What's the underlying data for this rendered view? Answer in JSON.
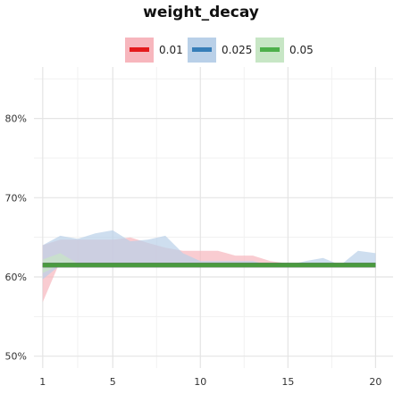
{
  "chart_data": {
    "type": "area",
    "title": "weight_decay",
    "xlabel": "",
    "ylabel": "",
    "x_ticks": [
      1,
      5,
      10,
      15,
      20
    ],
    "x_tick_labels": [
      "1",
      "5",
      "10",
      "15",
      "20"
    ],
    "y_ticks": [
      0.5,
      0.6,
      0.7,
      0.8
    ],
    "y_tick_labels": [
      "50%",
      "60%",
      "70%",
      "80%"
    ],
    "xlim": [
      0.5,
      21
    ],
    "ylim": [
      0.485,
      0.865
    ],
    "grid": true,
    "legend_position": "top-center",
    "x": [
      1,
      2,
      3,
      4,
      5,
      6,
      7,
      8,
      9,
      10,
      11,
      12,
      13,
      14,
      15,
      16,
      17,
      18,
      19,
      20
    ],
    "series": [
      {
        "name": "0.01",
        "color": "#e41a1c",
        "band_color": "#f7b6bd",
        "line_color": "#e41a1c",
        "mean": [
          0.615,
          0.615,
          0.615,
          0.615,
          0.615,
          0.615,
          0.615,
          0.615,
          0.615,
          0.615,
          0.615,
          0.615,
          0.615,
          0.615,
          0.615,
          0.615,
          0.615,
          0.615,
          0.615,
          0.615
        ],
        "lower": [
          0.568,
          0.62,
          0.615,
          0.615,
          0.615,
          0.615,
          0.615,
          0.615,
          0.615,
          0.615,
          0.615,
          0.615,
          0.615,
          0.615,
          0.615,
          0.615,
          0.615,
          0.615,
          0.615,
          0.615
        ],
        "upper": [
          0.64,
          0.647,
          0.647,
          0.647,
          0.647,
          0.65,
          0.643,
          0.637,
          0.633,
          0.633,
          0.633,
          0.627,
          0.627,
          0.62,
          0.617,
          0.615,
          0.615,
          0.615,
          0.615,
          0.615
        ]
      },
      {
        "name": "0.025",
        "color": "#377eb8",
        "band_color": "#b9d0e8",
        "line_color": "#2166ac",
        "mean": [
          0.615,
          0.615,
          0.615,
          0.615,
          0.615,
          0.615,
          0.615,
          0.615,
          0.615,
          0.615,
          0.615,
          0.615,
          0.615,
          0.615,
          0.615,
          0.615,
          0.615,
          0.615,
          0.615,
          0.615
        ],
        "lower": [
          0.597,
          0.615,
          0.615,
          0.615,
          0.615,
          0.615,
          0.615,
          0.615,
          0.615,
          0.615,
          0.615,
          0.615,
          0.615,
          0.615,
          0.615,
          0.615,
          0.615,
          0.615,
          0.615,
          0.615
        ],
        "upper": [
          0.64,
          0.652,
          0.648,
          0.655,
          0.659,
          0.645,
          0.647,
          0.652,
          0.63,
          0.62,
          0.62,
          0.62,
          0.62,
          0.615,
          0.615,
          0.62,
          0.624,
          0.615,
          0.633,
          0.63
        ]
      },
      {
        "name": "0.05",
        "color": "#4daf4a",
        "band_color": "#c7e6c5",
        "line_color": "#4a9a3f",
        "mean": [
          0.615,
          0.615,
          0.615,
          0.615,
          0.615,
          0.615,
          0.615,
          0.615,
          0.615,
          0.615,
          0.615,
          0.615,
          0.615,
          0.615,
          0.615,
          0.615,
          0.615,
          0.615,
          0.615,
          0.615
        ],
        "lower": [
          0.605,
          0.615,
          0.615,
          0.615,
          0.615,
          0.615,
          0.615,
          0.615,
          0.615,
          0.615,
          0.615,
          0.615,
          0.615,
          0.615,
          0.615,
          0.615,
          0.615,
          0.615,
          0.615,
          0.615
        ],
        "upper": [
          0.622,
          0.63,
          0.617,
          0.615,
          0.615,
          0.615,
          0.615,
          0.615,
          0.615,
          0.615,
          0.615,
          0.615,
          0.615,
          0.615,
          0.615,
          0.615,
          0.615,
          0.615,
          0.615,
          0.615
        ]
      }
    ]
  }
}
